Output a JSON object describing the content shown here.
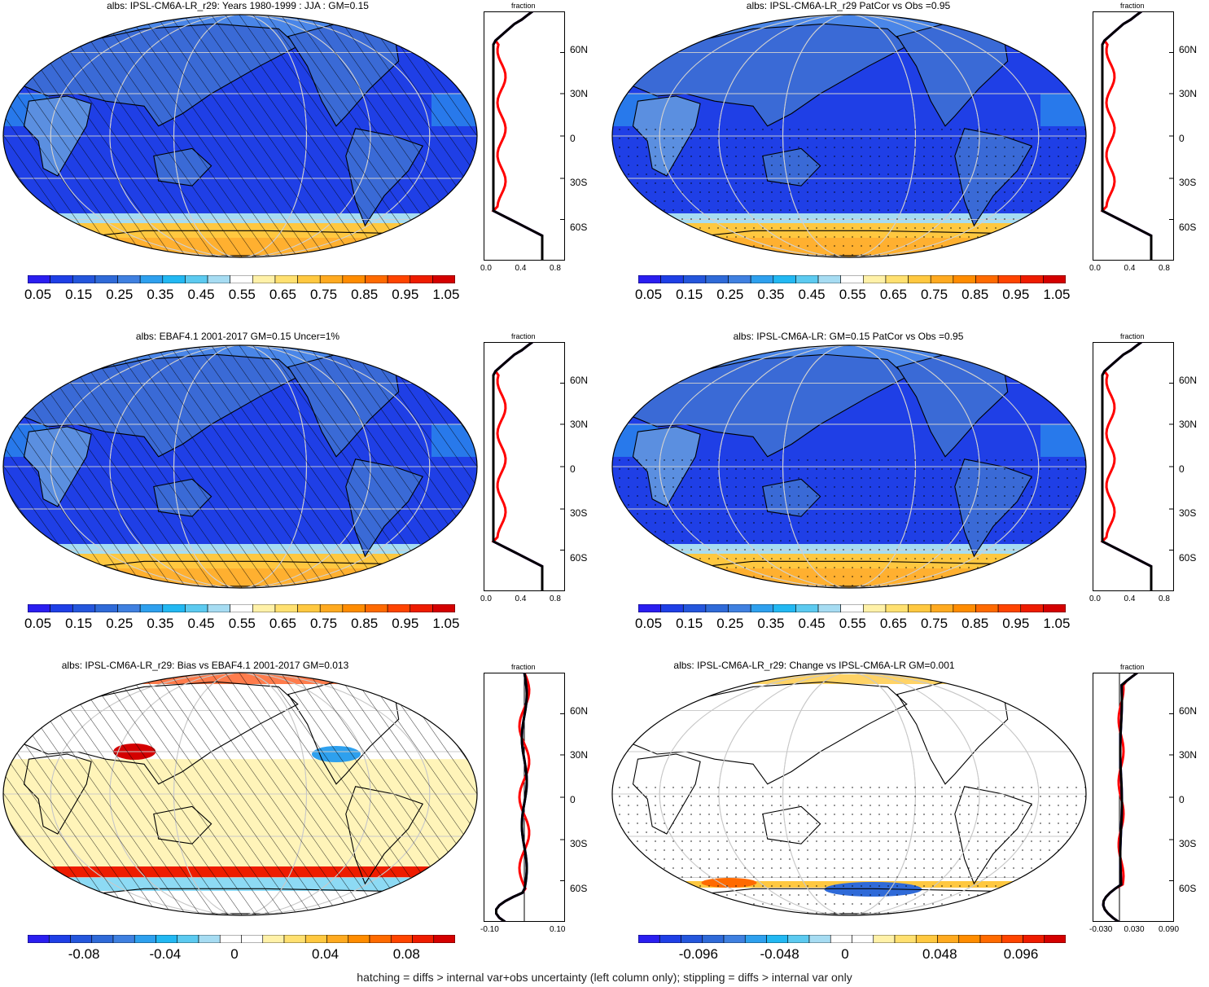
{
  "panels": [
    {
      "title": "albs: IPSL-CM6A-LR_r29: Years 1980-1999 : JJA : GM=0.15",
      "map_type": "absolute",
      "hatching": true,
      "stippling": false,
      "zonal_label": "fraction",
      "zonal_ticks": [
        "0.0",
        "0.4",
        "0.8"
      ],
      "colorbar_labels": [
        "0.05",
        "0.15",
        "0.25",
        "0.35",
        "0.45",
        "0.55",
        "0.65",
        "0.75",
        "0.85",
        "0.95",
        "1.05"
      ]
    },
    {
      "title": "albs: IPSL-CM6A-LR_r29 PatCor vs Obs =0.95",
      "map_type": "absolute",
      "hatching": false,
      "stippling": true,
      "zonal_label": "fraction",
      "zonal_ticks": [
        "0.0",
        "0.4",
        "0.8"
      ],
      "colorbar_labels": [
        "0.05",
        "0.15",
        "0.25",
        "0.35",
        "0.45",
        "0.55",
        "0.65",
        "0.75",
        "0.85",
        "0.95",
        "1.05"
      ]
    },
    {
      "title": "albs: EBAF4.1 2001-2017 GM=0.15 Uncer=1%",
      "map_type": "absolute",
      "hatching": true,
      "stippling": false,
      "zonal_label": "fraction",
      "zonal_ticks": [
        "0.0",
        "0.4",
        "0.8"
      ],
      "colorbar_labels": [
        "0.05",
        "0.15",
        "0.25",
        "0.35",
        "0.45",
        "0.55",
        "0.65",
        "0.75",
        "0.85",
        "0.95",
        "1.05"
      ]
    },
    {
      "title": "albs: IPSL-CM6A-LR: GM=0.15 PatCor vs Obs =0.95",
      "map_type": "absolute",
      "hatching": false,
      "stippling": true,
      "zonal_label": "fraction",
      "zonal_ticks": [
        "0.0",
        "0.4",
        "0.8"
      ],
      "colorbar_labels": [
        "0.05",
        "0.15",
        "0.25",
        "0.35",
        "0.45",
        "0.55",
        "0.65",
        "0.75",
        "0.85",
        "0.95",
        "1.05"
      ]
    },
    {
      "title": "albs: IPSL-CM6A-LR_r29: Bias vs EBAF4.1 2001-2017 GM=0.013",
      "map_type": "bias",
      "hatching": true,
      "stippling": false,
      "zonal_label": "fraction",
      "zonal_ticks": [
        "-0.10",
        "0.10"
      ],
      "colorbar_labels": [
        "-0.08",
        "-0.04",
        "0",
        "0.04",
        "0.08"
      ]
    },
    {
      "title": "albs: IPSL-CM6A-LR_r29: Change vs IPSL-CM6A-LR GM=0.001",
      "map_type": "change",
      "hatching": false,
      "stippling": true,
      "zonal_label": "fraction",
      "zonal_ticks": [
        "-0.030",
        "0.030",
        "0.090"
      ],
      "colorbar_labels": [
        "-0.096",
        "-0.048",
        "0",
        "0.048",
        "0.096"
      ]
    }
  ],
  "lat_labels": [
    "60N",
    "30N",
    "0",
    "30S",
    "60S"
  ],
  "colors": {
    "abs_scale": [
      "#2a1ef0",
      "#1f3fe6",
      "#2456dc",
      "#2f6ad8",
      "#3f80e0",
      "#2ea0ee",
      "#22b8f2",
      "#5ccaf0",
      "#a6dcf2",
      "#ffffff",
      "#fff1a8",
      "#ffe070",
      "#ffc840",
      "#ffaa20",
      "#ff8c00",
      "#ff6a00",
      "#ff4400",
      "#ee1c00",
      "#d40000"
    ],
    "div_scale": [
      "#2a1ef0",
      "#1f3fe6",
      "#2456dc",
      "#2f6ad8",
      "#3f80e0",
      "#2ea0ee",
      "#22b8f2",
      "#5ccaf0",
      "#a6dcf2",
      "#ffffff",
      "#ffffff",
      "#fff1a8",
      "#ffe070",
      "#ffc840",
      "#ffaa20",
      "#ff8c00",
      "#ff6a00",
      "#ff4400",
      "#ee1c00",
      "#d40000"
    ],
    "model_line": "#000000",
    "obs_line": "#ff0000",
    "alt_line": "#0000ff"
  },
  "footer": "hatching = diffs > internal var+obs uncertainty (left column only); stippling = diffs > internal var only"
}
